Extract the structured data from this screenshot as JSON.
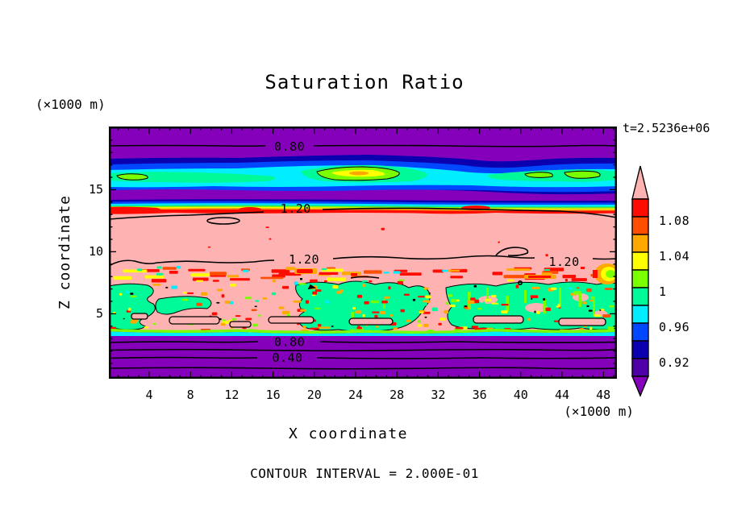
{
  "title": "Saturation Ratio",
  "time_label": "t=2.5236e+06",
  "footer": "CONTOUR INTERVAL = 2.000E-01",
  "axes": {
    "x_label": "X coordinate",
    "y_label": "Z coordinate",
    "x_unit": "(×1000 m)",
    "y_unit": "(×1000 m)",
    "x_ticks": [
      4,
      8,
      12,
      16,
      20,
      24,
      28,
      32,
      36,
      40,
      44,
      48
    ],
    "y_ticks": [
      5,
      10,
      15
    ],
    "x_range": [
      0,
      49.3
    ],
    "y_range": [
      0,
      20.2
    ]
  },
  "palette": {
    "red": "#ff0c00",
    "orangered": "#ff4e00",
    "orange": "#ffa800",
    "yellow": "#ffff00",
    "chartreuse": "#7aff00",
    "springgreen": "#00fa9a",
    "cyan": "#00eeff",
    "blue": "#0048ff",
    "navy": "#0b00b0",
    "darkviolet": "#4e00a6",
    "purple": "#8500bb",
    "pink": "#ffb2b2",
    "black": "#000000"
  },
  "colorbar": {
    "over_color": "#ffb2b2",
    "under_color": "#8500bb",
    "segments_top_to_bottom": [
      "#ff0c00",
      "#ff4e00",
      "#ffa800",
      "#ffff00",
      "#7aff00",
      "#00fa9a",
      "#00eeff",
      "#0048ff",
      "#0b00b0",
      "#4e00a6"
    ],
    "labels": [
      "1.08",
      "1.04",
      "1",
      "0.96",
      "0.92"
    ]
  },
  "contour_labels": [
    {
      "text": "0.80",
      "x": 17.6,
      "z": 18.5
    },
    {
      "text": "1.20",
      "x": 18.2,
      "z": 13.5
    },
    {
      "text": "1.20",
      "x": 19.0,
      "z": 9.4
    },
    {
      "text": "1.20",
      "x": 44.2,
      "z": 9.2
    },
    {
      "text": "0.80",
      "x": 17.6,
      "z": 2.75
    },
    {
      "text": "0.40",
      "x": 17.4,
      "z": 1.5
    }
  ],
  "chart_data": {
    "type": "filled_contour",
    "title": "Saturation Ratio",
    "xlabel": "X coordinate",
    "ylabel": "Z coordinate",
    "x_units": "×1000 m",
    "y_units": "×1000 m",
    "x_range": [
      0,
      49.3
    ],
    "z_range": [
      0,
      20.2
    ],
    "x_major_ticks": [
      4,
      8,
      12,
      16,
      20,
      24,
      28,
      32,
      36,
      40,
      44,
      48
    ],
    "z_major_ticks": [
      5,
      10,
      15
    ],
    "time_stamp": "t=2.5236e+06",
    "contour_interval": 0.2,
    "contour_labels_shown": [
      0.4,
      0.8,
      1.2
    ],
    "fill_levels": [
      0.9,
      0.92,
      0.94,
      0.96,
      0.98,
      1.0,
      1.02,
      1.04,
      1.06,
      1.08,
      1.1
    ],
    "fill_colors_low_to_high": [
      "#8500bb",
      "#4e00a6",
      "#0b00b0",
      "#0048ff",
      "#00eeff",
      "#00fa9a",
      "#7aff00",
      "#ffff00",
      "#ffa800",
      "#ff4e00",
      "#ff0c00",
      "#ffb2b2"
    ],
    "colorbar_tick_values": [
      0.92,
      0.96,
      1.0,
      1.04,
      1.08
    ],
    "vertical_structure": [
      {
        "z_band": [
          16.4,
          20.2
        ],
        "saturation": "< 0.90",
        "description": "uniform subsaturated top layer (purple); 0.80 contour at z ≈ 18.5"
      },
      {
        "z_band": [
          13.8,
          16.4
        ],
        "saturation": "0.90 - 1.05",
        "description": "wavy moist band (navy/blue/cyan/green) with local maxima pockets (chartreuse/yellow/orange) near z ≈ 16 at x ≈ 20-24, 3-4, 42-46"
      },
      {
        "z_band": [
          13.2,
          13.8
        ],
        "saturation": "0.90 - 1.10",
        "description": "sharp vertical gradient stripe (green-yellow-orange-red) at cloud-deck top"
      },
      {
        "z_band": [
          8.8,
          13.2
        ],
        "saturation": "> 1.10",
        "description": "supersaturated pink region; 1.20 contours near z ≈ 13.1 and z ≈ 9.2"
      },
      {
        "z_band": [
          3.4,
          8.8
        ],
        "saturation": "0.96 - 1.15",
        "description": "turbulent speckled layer: pink with red/orange/yellow cells and spring-green (≈ 1.0) patches outlined by 1.00 contours"
      },
      {
        "z_band": [
          0,
          3.4
        ],
        "saturation": "< 0.90",
        "description": "subsaturated surface layer (purple); contours 0.80 / 0.60 / 0.40 / 0.20 at z ≈ 2.8 / 2.2 / 1.5 / 0.7"
      }
    ]
  }
}
